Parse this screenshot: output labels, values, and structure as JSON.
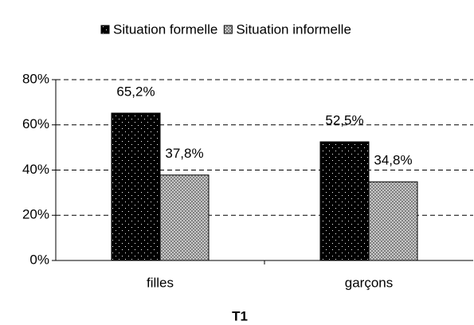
{
  "chart_data": {
    "type": "bar",
    "xlabel": "T1",
    "categories": [
      "filles",
      "garçons"
    ],
    "series": [
      {
        "name": "Situation formelle",
        "color": "#000000",
        "values": [
          65.2,
          52.5
        ],
        "value_labels": [
          "65,2%",
          "52,5%"
        ]
      },
      {
        "name": "Situation informelle",
        "color": "#a0a0a0",
        "values": [
          37.8,
          34.8
        ],
        "value_labels": [
          "37,8%",
          "34,8%"
        ]
      }
    ],
    "ylim": [
      0,
      80
    ],
    "yticks": [
      {
        "value": 0,
        "label": "0%"
      },
      {
        "value": 20,
        "label": "20%"
      },
      {
        "value": 40,
        "label": "40%"
      },
      {
        "value": 60,
        "label": "60%"
      },
      {
        "value": 80,
        "label": "80%"
      }
    ],
    "grid": true,
    "legend": "top"
  }
}
